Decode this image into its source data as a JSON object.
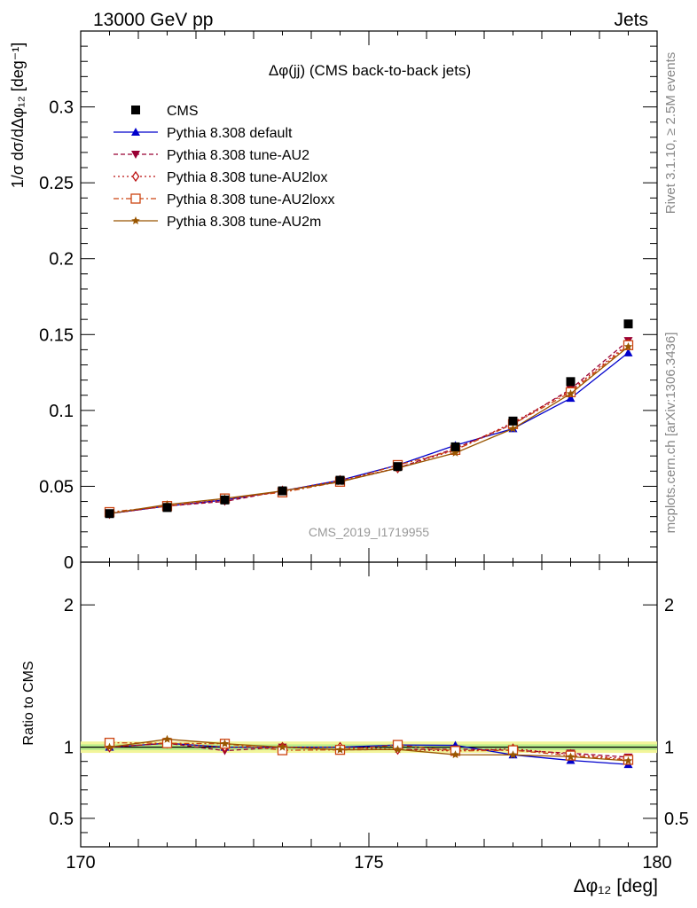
{
  "header": {
    "energy_label": "13000 GeV pp",
    "process_label": "Jets"
  },
  "side_labels": {
    "rivet": "Rivet 3.1.10, ≥ 2.5M events",
    "mcplots": "mcplots.cern.ch [arXiv:1306.3436]"
  },
  "chart_data": {
    "type": "line",
    "title": "Δφ(jj) (CMS back-to-back jets)",
    "watermark": "CMS_2019_I1719955",
    "xlabel": "Δφ₁₂ [deg]",
    "ylabel": "1/σ dσ/dΔφ₁₂ [deg⁻¹]",
    "ratio_ylabel": "Ratio to CMS",
    "xlim": [
      170,
      180
    ],
    "ylim": [
      0,
      0.35
    ],
    "ratio_ylim": [
      0.3,
      2.3
    ],
    "x_ticks": [
      170,
      175,
      180
    ],
    "y_ticks": [
      0,
      0.05,
      0.1,
      0.15,
      0.2,
      0.25,
      0.3
    ],
    "y_tick_labels": [
      "0",
      "0.05",
      "0.1",
      "0.15",
      "0.2",
      "0.25",
      "0.3"
    ],
    "ratio_ticks": [
      0.5,
      1,
      2
    ],
    "ratio_tick_labels": [
      "0.5",
      "1",
      "2"
    ],
    "x": [
      170.5,
      171.5,
      172.5,
      173.5,
      174.5,
      175.5,
      176.5,
      177.5,
      178.5,
      179.5
    ],
    "data": {
      "name": "CMS",
      "values": [
        0.032,
        0.036,
        0.041,
        0.047,
        0.054,
        0.063,
        0.076,
        0.093,
        0.119,
        0.157
      ],
      "band": 0.02
    },
    "series": [
      {
        "name": "Pythia 8.308 default",
        "color": "#0000cc",
        "marker": "triangle-up",
        "dash": "",
        "values": [
          0.032,
          0.037,
          0.041,
          0.047,
          0.054,
          0.064,
          0.077,
          0.088,
          0.108,
          0.138
        ]
      },
      {
        "name": "Pythia 8.308 tune-AU2",
        "color": "#990033",
        "marker": "triangle-down",
        "dash": "5,3",
        "values": [
          0.032,
          0.037,
          0.04,
          0.047,
          0.053,
          0.062,
          0.075,
          0.091,
          0.114,
          0.146
        ]
      },
      {
        "name": "Pythia 8.308 tune-AU2lox",
        "color": "#bb1111",
        "marker": "diamond-open",
        "dash": "2,3",
        "values": [
          0.032,
          0.037,
          0.041,
          0.047,
          0.054,
          0.062,
          0.074,
          0.092,
          0.113,
          0.144
        ]
      },
      {
        "name": "Pythia 8.308 tune-AU2loxx",
        "color": "#cc4411",
        "marker": "square-open",
        "dash": "6,3,2,3",
        "values": [
          0.033,
          0.037,
          0.042,
          0.046,
          0.053,
          0.064,
          0.074,
          0.091,
          0.112,
          0.143
        ]
      },
      {
        "name": "Pythia 8.308 tune-AU2m",
        "color": "#995500",
        "marker": "star",
        "dash": "",
        "values": [
          0.032,
          0.038,
          0.042,
          0.047,
          0.053,
          0.062,
          0.072,
          0.088,
          0.111,
          0.142
        ]
      }
    ],
    "legend_position": "top-left"
  }
}
